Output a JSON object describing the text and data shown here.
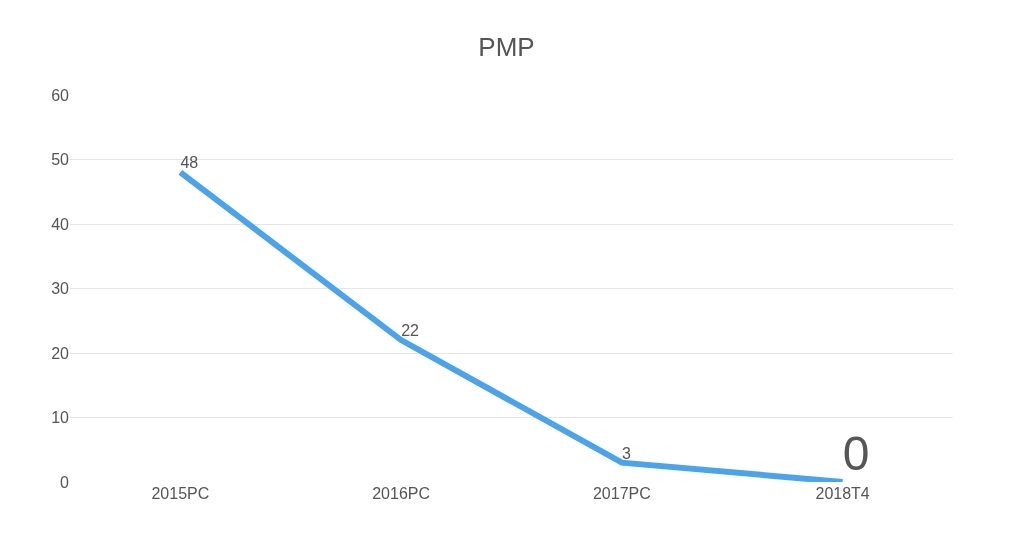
{
  "chart_data": {
    "type": "line",
    "title": "PMP",
    "categories": [
      "2015PC",
      "2016PC",
      "2017PC",
      "2018T4"
    ],
    "series": [
      {
        "color": "#4da3e8",
        "values": [
          48,
          22,
          3,
          0
        ]
      }
    ],
    "ylim": [
      0,
      60
    ],
    "yticks": [
      0,
      10,
      20,
      30,
      40,
      50,
      60
    ],
    "grid": "y",
    "data_labels": true,
    "marker": "none",
    "line_style": "solid"
  }
}
